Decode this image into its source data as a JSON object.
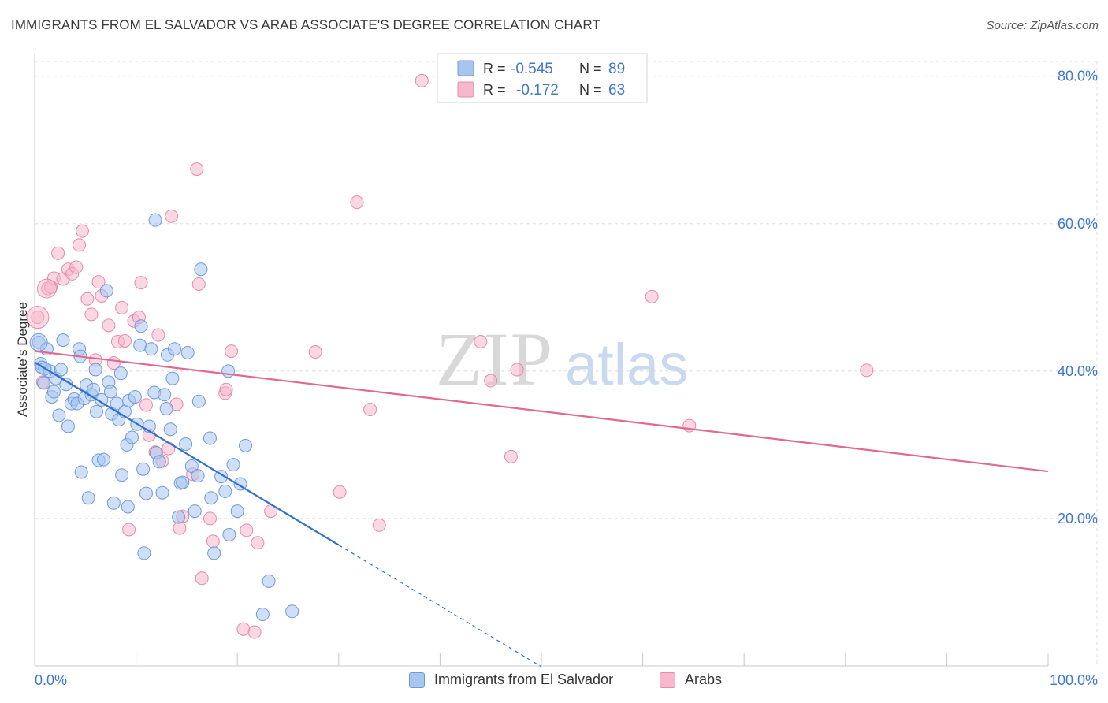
{
  "title": "IMMIGRANTS FROM EL SALVADOR VS ARAB ASSOCIATE'S DEGREE CORRELATION CHART",
  "source": "Source: ZipAtlas.com",
  "watermark": {
    "zip": "ZIP",
    "atlas": "atlas"
  },
  "colors": {
    "blue_fill": "#a8c5f0",
    "blue_stroke": "#6f9ad8",
    "blue_line": "#2f6fd0",
    "pink_fill": "#f5b8cc",
    "pink_stroke": "#e48aa8",
    "pink_line": "#e06891",
    "tick_label": "#3f78c8",
    "grid": "#dddddd"
  },
  "legend_stats": {
    "r_label": "R =",
    "n_label": "N =",
    "blue": {
      "r": "-0.545",
      "n": "89"
    },
    "pink": {
      "r": "-0.172",
      "n": "63"
    }
  },
  "chart_data": {
    "type": "scatter",
    "title": "IMMIGRANTS FROM EL SALVADOR VS ARAB ASSOCIATE'S DEGREE CORRELATION CHART",
    "xlabel": "",
    "ylabel": "Associate's Degree",
    "xlim": [
      0,
      100
    ],
    "ylim": [
      0,
      82
    ],
    "x_tick_labels": [
      "0.0%",
      "100.0%"
    ],
    "y_ticks": [
      20,
      40,
      60,
      80
    ],
    "y_tick_labels": [
      "20.0%",
      "40.0%",
      "60.0%",
      "80.0%"
    ],
    "grid": true,
    "legend_position": "top-center",
    "series": [
      {
        "name": "Immigrants from El Salvador",
        "color": "#a8c5f0",
        "trend": {
          "x": [
            0,
            30
          ],
          "y": [
            41.2,
            16.4
          ],
          "dashed_to": [
            50,
            -0.1
          ]
        },
        "points": [
          [
            0.4,
            43.9
          ],
          [
            0.6,
            41.0
          ],
          [
            0.7,
            40.5
          ],
          [
            0.9,
            38.4
          ],
          [
            1.2,
            43.0
          ],
          [
            1.5,
            40.0
          ],
          [
            1.7,
            36.5
          ],
          [
            1.9,
            37.2
          ],
          [
            2.1,
            39.0
          ],
          [
            2.4,
            34.0
          ],
          [
            2.6,
            40.2
          ],
          [
            2.8,
            44.2
          ],
          [
            3.1,
            38.2
          ],
          [
            3.3,
            32.5
          ],
          [
            3.6,
            35.6
          ],
          [
            3.9,
            36.2
          ],
          [
            4.2,
            35.6
          ],
          [
            4.4,
            43.0
          ],
          [
            4.5,
            42.0
          ],
          [
            4.6,
            26.3
          ],
          [
            4.9,
            36.3
          ],
          [
            5.1,
            38.1
          ],
          [
            5.3,
            22.8
          ],
          [
            5.6,
            36.8
          ],
          [
            5.8,
            37.5
          ],
          [
            6.0,
            40.2
          ],
          [
            6.1,
            34.5
          ],
          [
            6.3,
            27.9
          ],
          [
            6.6,
            36.1
          ],
          [
            6.8,
            28.0
          ],
          [
            7.1,
            50.9
          ],
          [
            7.3,
            38.5
          ],
          [
            7.5,
            37.2
          ],
          [
            7.6,
            34.2
          ],
          [
            7.8,
            22.1
          ],
          [
            8.1,
            35.6
          ],
          [
            8.3,
            33.4
          ],
          [
            8.5,
            39.7
          ],
          [
            8.6,
            25.9
          ],
          [
            8.9,
            34.5
          ],
          [
            9.1,
            30.0
          ],
          [
            9.2,
            21.6
          ],
          [
            9.3,
            36.0
          ],
          [
            9.6,
            31.0
          ],
          [
            9.9,
            36.5
          ],
          [
            10.1,
            32.8
          ],
          [
            10.4,
            43.5
          ],
          [
            10.5,
            46.1
          ],
          [
            10.7,
            26.7
          ],
          [
            10.8,
            15.3
          ],
          [
            11.0,
            23.4
          ],
          [
            11.3,
            32.5
          ],
          [
            11.5,
            43.0
          ],
          [
            11.8,
            37.1
          ],
          [
            11.9,
            60.5
          ],
          [
            12.0,
            28.9
          ],
          [
            12.3,
            27.7
          ],
          [
            12.6,
            23.5
          ],
          [
            12.8,
            36.8
          ],
          [
            13.0,
            34.9
          ],
          [
            13.1,
            42.2
          ],
          [
            13.4,
            32.1
          ],
          [
            13.6,
            39.0
          ],
          [
            13.8,
            43.0
          ],
          [
            14.2,
            20.2
          ],
          [
            14.4,
            24.8
          ],
          [
            14.6,
            24.9
          ],
          [
            14.9,
            30.1
          ],
          [
            15.1,
            42.5
          ],
          [
            15.5,
            27.1
          ],
          [
            15.8,
            21.0
          ],
          [
            16.1,
            25.8
          ],
          [
            16.2,
            35.9
          ],
          [
            16.4,
            53.8
          ],
          [
            17.3,
            30.9
          ],
          [
            17.4,
            22.8
          ],
          [
            17.7,
            15.3
          ],
          [
            18.4,
            25.7
          ],
          [
            18.8,
            23.7
          ],
          [
            19.1,
            40.0
          ],
          [
            19.2,
            17.8
          ],
          [
            19.6,
            27.3
          ],
          [
            20.0,
            21.0
          ],
          [
            20.3,
            24.7
          ],
          [
            20.8,
            29.9
          ],
          [
            22.5,
            7.0
          ],
          [
            23.1,
            11.5
          ],
          [
            25.4,
            7.4
          ],
          [
            1.0,
            40.3
          ]
        ]
      },
      {
        "name": "Arabs",
        "color": "#f5b8cc",
        "trend": {
          "x": [
            0,
            100
          ],
          "y": [
            42.7,
            26.4
          ]
        },
        "points": [
          [
            0.3,
            47.3
          ],
          [
            0.8,
            38.5
          ],
          [
            1.3,
            51.2
          ],
          [
            1.9,
            52.6
          ],
          [
            2.3,
            56.0
          ],
          [
            2.8,
            52.5
          ],
          [
            3.3,
            53.8
          ],
          [
            3.7,
            53.2
          ],
          [
            4.1,
            54.1
          ],
          [
            4.4,
            57.1
          ],
          [
            4.7,
            59.0
          ],
          [
            5.2,
            49.8
          ],
          [
            5.6,
            47.7
          ],
          [
            6.0,
            41.5
          ],
          [
            6.3,
            52.1
          ],
          [
            6.6,
            50.2
          ],
          [
            7.3,
            46.2
          ],
          [
            7.8,
            41.1
          ],
          [
            8.2,
            44.0
          ],
          [
            8.6,
            48.6
          ],
          [
            8.9,
            44.1
          ],
          [
            9.3,
            18.5
          ],
          [
            9.8,
            46.8
          ],
          [
            10.3,
            47.3
          ],
          [
            10.5,
            52.0
          ],
          [
            11.0,
            35.4
          ],
          [
            11.3,
            31.3
          ],
          [
            11.9,
            29.0
          ],
          [
            12.2,
            44.9
          ],
          [
            12.6,
            27.8
          ],
          [
            13.2,
            29.5
          ],
          [
            13.5,
            61.0
          ],
          [
            14.0,
            35.5
          ],
          [
            14.3,
            18.7
          ],
          [
            14.6,
            20.3
          ],
          [
            15.6,
            26.0
          ],
          [
            16.0,
            67.4
          ],
          [
            16.2,
            51.8
          ],
          [
            16.5,
            11.9
          ],
          [
            17.3,
            20.0
          ],
          [
            17.6,
            16.9
          ],
          [
            18.8,
            37.0
          ],
          [
            18.9,
            37.5
          ],
          [
            19.4,
            42.7
          ],
          [
            20.6,
            5.0
          ],
          [
            20.9,
            18.4
          ],
          [
            21.7,
            4.6
          ],
          [
            22.0,
            16.7
          ],
          [
            23.3,
            21.0
          ],
          [
            27.7,
            42.6
          ],
          [
            30.1,
            23.6
          ],
          [
            31.8,
            62.9
          ],
          [
            33.1,
            34.8
          ],
          [
            34.0,
            19.1
          ],
          [
            38.2,
            79.4
          ],
          [
            44.0,
            44.0
          ],
          [
            45.0,
            38.7
          ],
          [
            47.0,
            28.4
          ],
          [
            47.6,
            40.2
          ],
          [
            60.9,
            50.1
          ],
          [
            64.6,
            32.6
          ],
          [
            82.1,
            40.1
          ],
          [
            1.6,
            51.4
          ]
        ]
      }
    ]
  }
}
